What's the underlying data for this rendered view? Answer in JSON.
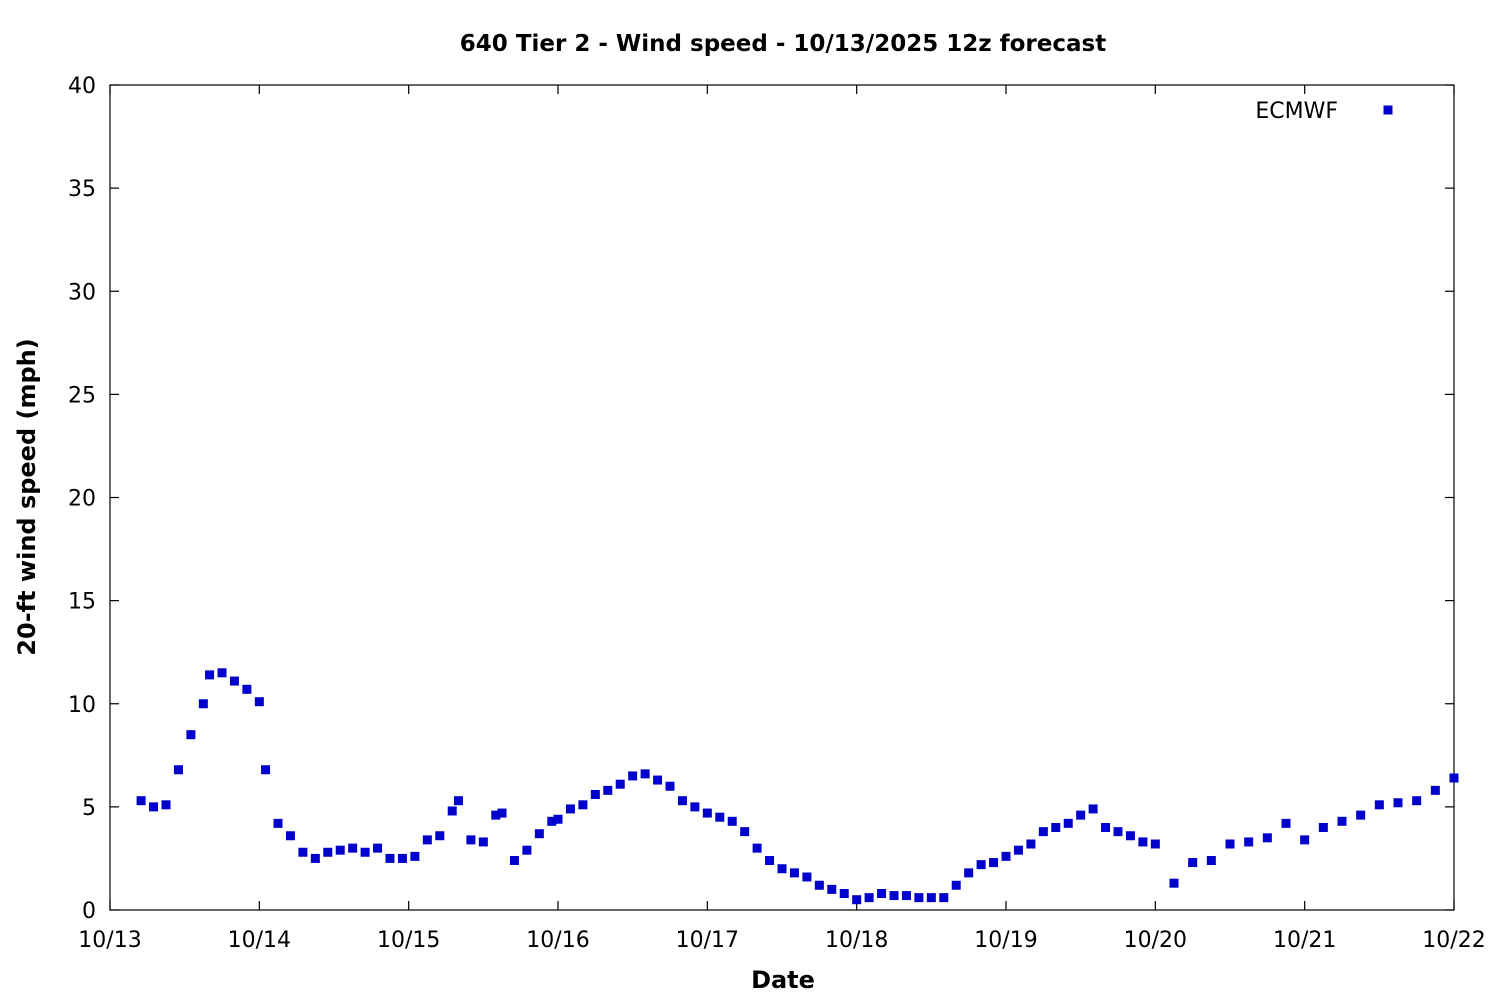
{
  "chart_data": {
    "type": "scatter",
    "title": "640 Tier 2 - Wind speed - 10/13/2025 12z forecast",
    "xlabel": "Date",
    "ylabel": "20-ft wind speed (mph)",
    "xlim": [
      "2025-10-13T00:00",
      "2025-10-22T00:00"
    ],
    "ylim": [
      0,
      40
    ],
    "x_tick_labels": [
      "10/13",
      "10/14",
      "10/15",
      "10/16",
      "10/17",
      "10/18",
      "10/19",
      "10/20",
      "10/21",
      "10/22"
    ],
    "y_tick_labels": [
      "0",
      "5",
      "10",
      "15",
      "20",
      "25",
      "30",
      "35",
      "40"
    ],
    "grid": false,
    "legend_position": "top-right",
    "series": [
      {
        "name": "ECMWF",
        "marker": "square",
        "color": "#0000cc",
        "points": [
          [
            "2025-10-13T05:00",
            5.3
          ],
          [
            "2025-10-13T07:00",
            5.0
          ],
          [
            "2025-10-13T09:00",
            5.1
          ],
          [
            "2025-10-13T11:00",
            6.8
          ],
          [
            "2025-10-13T13:00",
            8.5
          ],
          [
            "2025-10-13T15:00",
            10.0
          ],
          [
            "2025-10-13T16:00",
            11.4
          ],
          [
            "2025-10-13T18:00",
            11.5
          ],
          [
            "2025-10-13T20:00",
            11.1
          ],
          [
            "2025-10-13T22:00",
            10.7
          ],
          [
            "2025-10-14T00:00",
            10.1
          ],
          [
            "2025-10-14T01:00",
            6.8
          ],
          [
            "2025-10-14T03:00",
            4.2
          ],
          [
            "2025-10-14T05:00",
            3.6
          ],
          [
            "2025-10-14T07:00",
            2.8
          ],
          [
            "2025-10-14T09:00",
            2.5
          ],
          [
            "2025-10-14T11:00",
            2.8
          ],
          [
            "2025-10-14T13:00",
            2.9
          ],
          [
            "2025-10-14T15:00",
            3.0
          ],
          [
            "2025-10-14T17:00",
            2.8
          ],
          [
            "2025-10-14T19:00",
            3.0
          ],
          [
            "2025-10-14T21:00",
            2.5
          ],
          [
            "2025-10-14T23:00",
            2.5
          ],
          [
            "2025-10-15T01:00",
            2.6
          ],
          [
            "2025-10-15T03:00",
            3.4
          ],
          [
            "2025-10-15T05:00",
            3.6
          ],
          [
            "2025-10-15T07:00",
            4.8
          ],
          [
            "2025-10-15T08:00",
            5.3
          ],
          [
            "2025-10-15T10:00",
            3.4
          ],
          [
            "2025-10-15T12:00",
            3.3
          ],
          [
            "2025-10-15T14:00",
            4.6
          ],
          [
            "2025-10-15T15:00",
            4.7
          ],
          [
            "2025-10-15T17:00",
            2.4
          ],
          [
            "2025-10-15T19:00",
            2.9
          ],
          [
            "2025-10-15T21:00",
            3.7
          ],
          [
            "2025-10-15T23:00",
            4.3
          ],
          [
            "2025-10-16T00:00",
            4.4
          ],
          [
            "2025-10-16T02:00",
            4.9
          ],
          [
            "2025-10-16T04:00",
            5.1
          ],
          [
            "2025-10-16T06:00",
            5.6
          ],
          [
            "2025-10-16T08:00",
            5.8
          ],
          [
            "2025-10-16T10:00",
            6.1
          ],
          [
            "2025-10-16T12:00",
            6.5
          ],
          [
            "2025-10-16T14:00",
            6.6
          ],
          [
            "2025-10-16T16:00",
            6.3
          ],
          [
            "2025-10-16T18:00",
            6.0
          ],
          [
            "2025-10-16T20:00",
            5.3
          ],
          [
            "2025-10-16T22:00",
            5.0
          ],
          [
            "2025-10-17T00:00",
            4.7
          ],
          [
            "2025-10-17T02:00",
            4.5
          ],
          [
            "2025-10-17T04:00",
            4.3
          ],
          [
            "2025-10-17T06:00",
            3.8
          ],
          [
            "2025-10-17T08:00",
            3.0
          ],
          [
            "2025-10-17T10:00",
            2.4
          ],
          [
            "2025-10-17T12:00",
            2.0
          ],
          [
            "2025-10-17T14:00",
            1.8
          ],
          [
            "2025-10-17T16:00",
            1.6
          ],
          [
            "2025-10-17T18:00",
            1.2
          ],
          [
            "2025-10-17T20:00",
            1.0
          ],
          [
            "2025-10-17T22:00",
            0.8
          ],
          [
            "2025-10-18T00:00",
            0.5
          ],
          [
            "2025-10-18T02:00",
            0.6
          ],
          [
            "2025-10-18T04:00",
            0.8
          ],
          [
            "2025-10-18T06:00",
            0.7
          ],
          [
            "2025-10-18T08:00",
            0.7
          ],
          [
            "2025-10-18T10:00",
            0.6
          ],
          [
            "2025-10-18T12:00",
            0.6
          ],
          [
            "2025-10-18T14:00",
            0.6
          ],
          [
            "2025-10-18T16:00",
            1.2
          ],
          [
            "2025-10-18T18:00",
            1.8
          ],
          [
            "2025-10-18T20:00",
            2.2
          ],
          [
            "2025-10-18T22:00",
            2.3
          ],
          [
            "2025-10-19T00:00",
            2.6
          ],
          [
            "2025-10-19T02:00",
            2.9
          ],
          [
            "2025-10-19T04:00",
            3.2
          ],
          [
            "2025-10-19T06:00",
            3.8
          ],
          [
            "2025-10-19T08:00",
            4.0
          ],
          [
            "2025-10-19T10:00",
            4.2
          ],
          [
            "2025-10-19T12:00",
            4.6
          ],
          [
            "2025-10-19T14:00",
            4.9
          ],
          [
            "2025-10-19T16:00",
            4.0
          ],
          [
            "2025-10-19T18:00",
            3.8
          ],
          [
            "2025-10-19T20:00",
            3.6
          ],
          [
            "2025-10-19T22:00",
            3.3
          ],
          [
            "2025-10-20T00:00",
            3.2
          ],
          [
            "2025-10-20T03:00",
            1.3
          ],
          [
            "2025-10-20T06:00",
            2.3
          ],
          [
            "2025-10-20T09:00",
            2.4
          ],
          [
            "2025-10-20T12:00",
            3.2
          ],
          [
            "2025-10-20T15:00",
            3.3
          ],
          [
            "2025-10-20T18:00",
            3.5
          ],
          [
            "2025-10-20T21:00",
            4.2
          ],
          [
            "2025-10-21T00:00",
            3.4
          ],
          [
            "2025-10-21T03:00",
            4.0
          ],
          [
            "2025-10-21T06:00",
            4.3
          ],
          [
            "2025-10-21T09:00",
            4.6
          ],
          [
            "2025-10-21T12:00",
            5.1
          ],
          [
            "2025-10-21T15:00",
            5.2
          ],
          [
            "2025-10-21T18:00",
            5.3
          ],
          [
            "2025-10-21T21:00",
            5.8
          ],
          [
            "2025-10-22T00:00",
            6.4
          ]
        ]
      }
    ]
  }
}
